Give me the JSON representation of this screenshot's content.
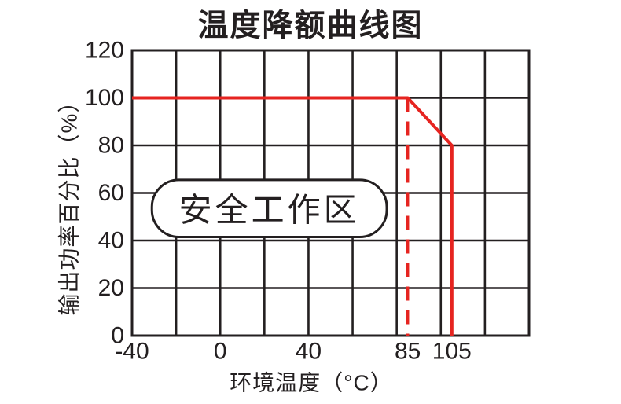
{
  "figure": {
    "background": "#ffffff"
  },
  "chart_data": {
    "type": "line",
    "title": "温度降额曲线图",
    "xlabel": "环境温度（°C）",
    "ylabel": "输出功率百分比（%）",
    "xlim": [
      -40,
      140
    ],
    "ylim": [
      0,
      120
    ],
    "grid": true,
    "grid_step": {
      "x": 20,
      "y": 20
    },
    "legend_position": "none",
    "x_ticks": [
      {
        "value": -40,
        "label": "-40"
      },
      {
        "value": 0,
        "label": "0"
      },
      {
        "value": 40,
        "label": "40"
      },
      {
        "value": 85,
        "label": "85"
      },
      {
        "value": 105,
        "label": "105"
      }
    ],
    "y_ticks": [
      {
        "value": 0,
        "label": "0"
      },
      {
        "value": 20,
        "label": "20"
      },
      {
        "value": 40,
        "label": "40"
      },
      {
        "value": 60,
        "label": "60"
      },
      {
        "value": 80,
        "label": "80"
      },
      {
        "value": 100,
        "label": "100"
      },
      {
        "value": 120,
        "label": "120"
      }
    ],
    "series": [
      {
        "name": "derating-curve",
        "style": "solid",
        "color": "#e62420",
        "width": 4,
        "points": [
          [
            -40,
            100
          ],
          [
            85,
            100
          ],
          [
            105,
            80
          ],
          [
            105,
            0
          ]
        ]
      },
      {
        "name": "derating-start-85c-line",
        "style": "dashed",
        "color": "#e62420",
        "width": 3.5,
        "dash": [
          18,
          12
        ],
        "points": [
          [
            85,
            100
          ],
          [
            85,
            0
          ]
        ]
      }
    ],
    "annotations": [
      {
        "label": "安全工作区",
        "x_range": [
          -31,
          75.5
        ],
        "y_range": [
          41.5,
          65.5
        ],
        "fill": "#ffffff",
        "border": "#231f20"
      }
    ],
    "colors": {
      "grid": "#231f20",
      "text": "#231f20",
      "curve": "#e62420",
      "background": "#ffffff"
    }
  }
}
